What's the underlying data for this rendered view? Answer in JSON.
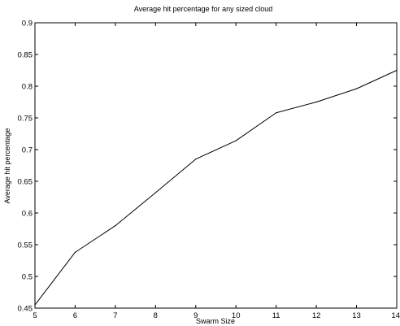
{
  "chart_data": {
    "type": "line",
    "title": "Average hit percentage for any sized cloud",
    "xlabel": "Swarm Size",
    "ylabel": "Average hit percentage",
    "xlim": [
      5,
      14
    ],
    "ylim": [
      0.45,
      0.9
    ],
    "grid": false,
    "xticks": [
      "5",
      "6",
      "7",
      "8",
      "9",
      "10",
      "11",
      "12",
      "13",
      "14"
    ],
    "yticks": [
      "0.45",
      "0.5",
      "0.55",
      "0.6",
      "0.65",
      "0.7",
      "0.75",
      "0.8",
      "0.85",
      "0.9"
    ],
    "series": [
      {
        "x": [
          5,
          6,
          7,
          8,
          9,
          10,
          11,
          12,
          13,
          14
        ],
        "y": [
          0.455,
          0.538,
          0.58,
          0.632,
          0.685,
          0.714,
          0.758,
          0.775,
          0.796,
          0.825
        ]
      }
    ],
    "colors": {
      "line": "#000000",
      "axes": "#000000",
      "background": "#ffffff"
    }
  }
}
